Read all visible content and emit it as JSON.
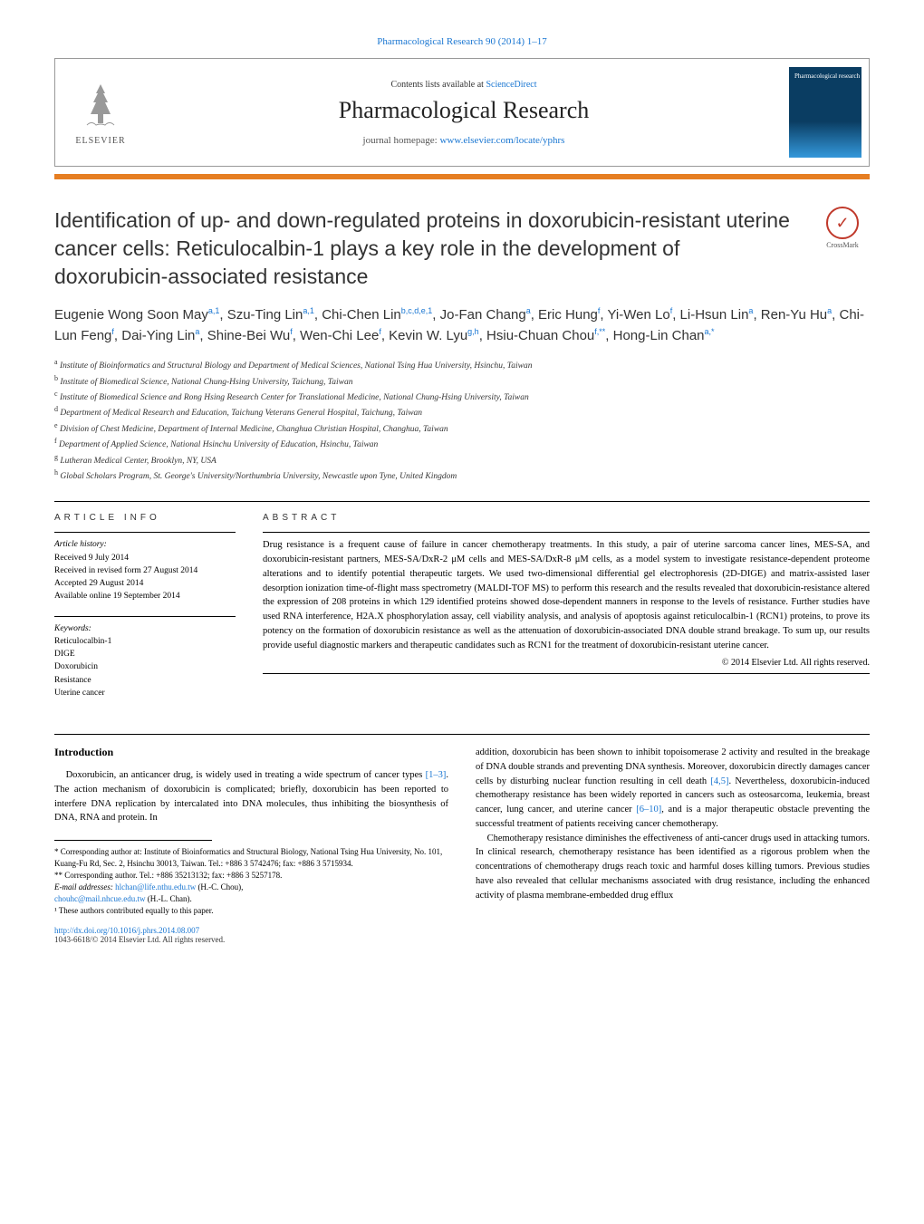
{
  "header": {
    "top_link": "Pharmacological Research 90 (2014) 1–17",
    "contents_text": "Contents lists available at ",
    "contents_link": "ScienceDirect",
    "journal_name": "Pharmacological Research",
    "homepage_label": "journal homepage: ",
    "homepage_url": "www.elsevier.com/locate/yphrs",
    "elsevier": "ELSEVIER",
    "cover_text": "Pharmacological research"
  },
  "crossmark": "CrossMark",
  "title": "Identification of up- and down-regulated proteins in doxorubicin-resistant uterine cancer cells: Reticulocalbin-1 plays a key role in the development of doxorubicin-associated resistance",
  "authors_html": "Eugenie Wong Soon May<sup>a,1</sup>, Szu-Ting Lin<sup>a,1</sup>, Chi-Chen Lin<sup>b,c,d,e,1</sup>, Jo-Fan Chang<sup>a</sup>, Eric Hung<sup>f</sup>, Yi-Wen Lo<sup>f</sup>, Li-Hsun Lin<sup>a</sup>, Ren-Yu Hu<sup>a</sup>, Chi-Lun Feng<sup>f</sup>, Dai-Ying Lin<sup>a</sup>, Shine-Bei Wu<sup>f</sup>, Wen-Chi Lee<sup>f</sup>, Kevin W. Lyu<sup>g,h</sup>, Hsiu-Chuan Chou<sup>f,**</sup>, Hong-Lin Chan<sup>a,*</sup>",
  "affiliations": [
    {
      "sup": "a",
      "text": "Institute of Bioinformatics and Structural Biology and Department of Medical Sciences, National Tsing Hua University, Hsinchu, Taiwan"
    },
    {
      "sup": "b",
      "text": "Institute of Biomedical Science, National Chung-Hsing University, Taichung, Taiwan"
    },
    {
      "sup": "c",
      "text": "Institute of Biomedical Science and Rong Hsing Research Center for Translational Medicine, National Chung-Hsing University, Taiwan"
    },
    {
      "sup": "d",
      "text": "Department of Medical Research and Education, Taichung Veterans General Hospital, Taichung, Taiwan"
    },
    {
      "sup": "e",
      "text": "Division of Chest Medicine, Department of Internal Medicine, Changhua Christian Hospital, Changhua, Taiwan"
    },
    {
      "sup": "f",
      "text": "Department of Applied Science, National Hsinchu University of Education, Hsinchu, Taiwan"
    },
    {
      "sup": "g",
      "text": "Lutheran Medical Center, Brooklyn, NY, USA"
    },
    {
      "sup": "h",
      "text": "Global Scholars Program, St. George's University/Northumbria University, Newcastle upon Tyne, United Kingdom"
    }
  ],
  "article_info": {
    "heading": "ARTICLE INFO",
    "history_label": "Article history:",
    "history": [
      "Received 9 July 2014",
      "Received in revised form 27 August 2014",
      "Accepted 29 August 2014",
      "Available online 19 September 2014"
    ],
    "keywords_label": "Keywords:",
    "keywords": [
      "Reticulocalbin-1",
      "DIGE",
      "Doxorubicin",
      "Resistance",
      "Uterine cancer"
    ]
  },
  "abstract": {
    "heading": "ABSTRACT",
    "text": "Drug resistance is a frequent cause of failure in cancer chemotherapy treatments. In this study, a pair of uterine sarcoma cancer lines, MES-SA, and doxorubicin-resistant partners, MES-SA/DxR-2 μM cells and MES-SA/DxR-8 μM cells, as a model system to investigate resistance-dependent proteome alterations and to identify potential therapeutic targets. We used two-dimensional differential gel electrophoresis (2D-DIGE) and matrix-assisted laser desorption ionization time-of-flight mass spectrometry (MALDI-TOF MS) to perform this research and the results revealed that doxorubicin-resistance altered the expression of 208 proteins in which 129 identified proteins showed dose-dependent manners in response to the levels of resistance. Further studies have used RNA interference, H2A.X phosphorylation assay, cell viability analysis, and analysis of apoptosis against reticulocalbin-1 (RCN1) proteins, to prove its potency on the formation of doxorubicin resistance as well as the attenuation of doxorubicin-associated DNA double strand breakage. To sum up, our results provide useful diagnostic markers and therapeutic candidates such as RCN1 for the treatment of doxorubicin-resistant uterine cancer.",
    "copyright": "© 2014 Elsevier Ltd. All rights reserved."
  },
  "body": {
    "heading": "Introduction",
    "col1_p1": "Doxorubicin, an anticancer drug, is widely used in treating a wide spectrum of cancer types ",
    "col1_ref1": "[1–3]",
    "col1_p1b": ". The action mechanism of doxorubicin is complicated; briefly, doxorubicin has been reported to interfere DNA replication by intercalated into DNA molecules, thus inhibiting the biosynthesis of DNA, RNA and protein. In",
    "col2_p1a": "addition, doxorubicin has been shown to inhibit topoisomerase 2 activity and resulted in the breakage of DNA double strands and preventing DNA synthesis. Moreover, doxorubicin directly damages cancer cells by disturbing nuclear function resulting in cell death ",
    "col2_ref1": "[4,5]",
    "col2_p1b": ". Nevertheless, doxorubicin-induced chemotherapy resistance has been widely reported in cancers such as osteosarcoma, leukemia, breast cancer, lung cancer, and uterine cancer ",
    "col2_ref2": "[6–10]",
    "col2_p1c": ", and is a major therapeutic obstacle preventing the successful treatment of patients receiving cancer chemotherapy.",
    "col2_p2": "Chemotherapy resistance diminishes the effectiveness of anti-cancer drugs used in attacking tumors. In clinical research, chemotherapy resistance has been identified as a rigorous problem when the concentrations of chemotherapy drugs reach toxic and harmful doses killing tumors. Previous studies have also revealed that cellular mechanisms associated with drug resistance, including the enhanced activity of plasma membrane-embedded drug efflux"
  },
  "footnotes": {
    "corr1": "* Corresponding author at: Institute of Bioinformatics and Structural Biology, National Tsing Hua University, No. 101, Kuang-Fu Rd, Sec. 2, Hsinchu 30013, Taiwan. Tel.: +886 3 5742476; fax: +886 3 5715934.",
    "corr2": "** Corresponding author. Tel.: +886 35213132; fax: +886 3 5257178.",
    "email_label": "E-mail addresses: ",
    "email1": "hlchan@life.nthu.edu.tw",
    "email1_name": " (H.-C. Chou),",
    "email2": "chouhc@mail.nhcue.edu.tw",
    "email2_name": " (H.-L. Chan).",
    "equal": "¹ These authors contributed equally to this paper.",
    "doi": "http://dx.doi.org/10.1016/j.phrs.2014.08.007",
    "issn": "1043-6618/© 2014 Elsevier Ltd. All rights reserved."
  },
  "colors": {
    "link": "#1976d2",
    "bar": "#e67e22",
    "crossmark": "#c0392b"
  }
}
